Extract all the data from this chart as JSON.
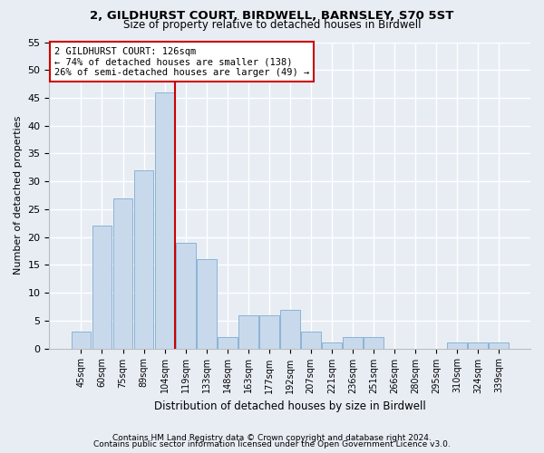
{
  "title1": "2, GILDHURST COURT, BIRDWELL, BARNSLEY, S70 5ST",
  "title2": "Size of property relative to detached houses in Birdwell",
  "xlabel": "Distribution of detached houses by size in Birdwell",
  "ylabel": "Number of detached properties",
  "categories": [
    "45sqm",
    "60sqm",
    "75sqm",
    "89sqm",
    "104sqm",
    "119sqm",
    "133sqm",
    "148sqm",
    "163sqm",
    "177sqm",
    "192sqm",
    "207sqm",
    "221sqm",
    "236sqm",
    "251sqm",
    "266sqm",
    "280sqm",
    "295sqm",
    "310sqm",
    "324sqm",
    "339sqm"
  ],
  "values": [
    3,
    22,
    27,
    32,
    46,
    19,
    16,
    2,
    6,
    6,
    7,
    3,
    1,
    2,
    2,
    0,
    0,
    0,
    1,
    1,
    1
  ],
  "bar_color": "#c9d9ec",
  "bar_edge_color": "#8ab4d4",
  "vline_color": "#cc0000",
  "vline_index": 5,
  "annotation_text": "2 GILDHURST COURT: 126sqm\n← 74% of detached houses are smaller (138)\n26% of semi-detached houses are larger (49) →",
  "annotation_box_color": "#ffffff",
  "annotation_box_edge": "#cc0000",
  "ylim": [
    0,
    55
  ],
  "yticks": [
    0,
    5,
    10,
    15,
    20,
    25,
    30,
    35,
    40,
    45,
    50,
    55
  ],
  "bg_color": "#e8edf4",
  "plot_bg_color": "#e8edf4",
  "grid_color": "#ffffff",
  "title1_fontsize": 9.5,
  "title2_fontsize": 8.5,
  "footer1": "Contains HM Land Registry data © Crown copyright and database right 2024.",
  "footer2": "Contains public sector information licensed under the Open Government Licence v3.0."
}
